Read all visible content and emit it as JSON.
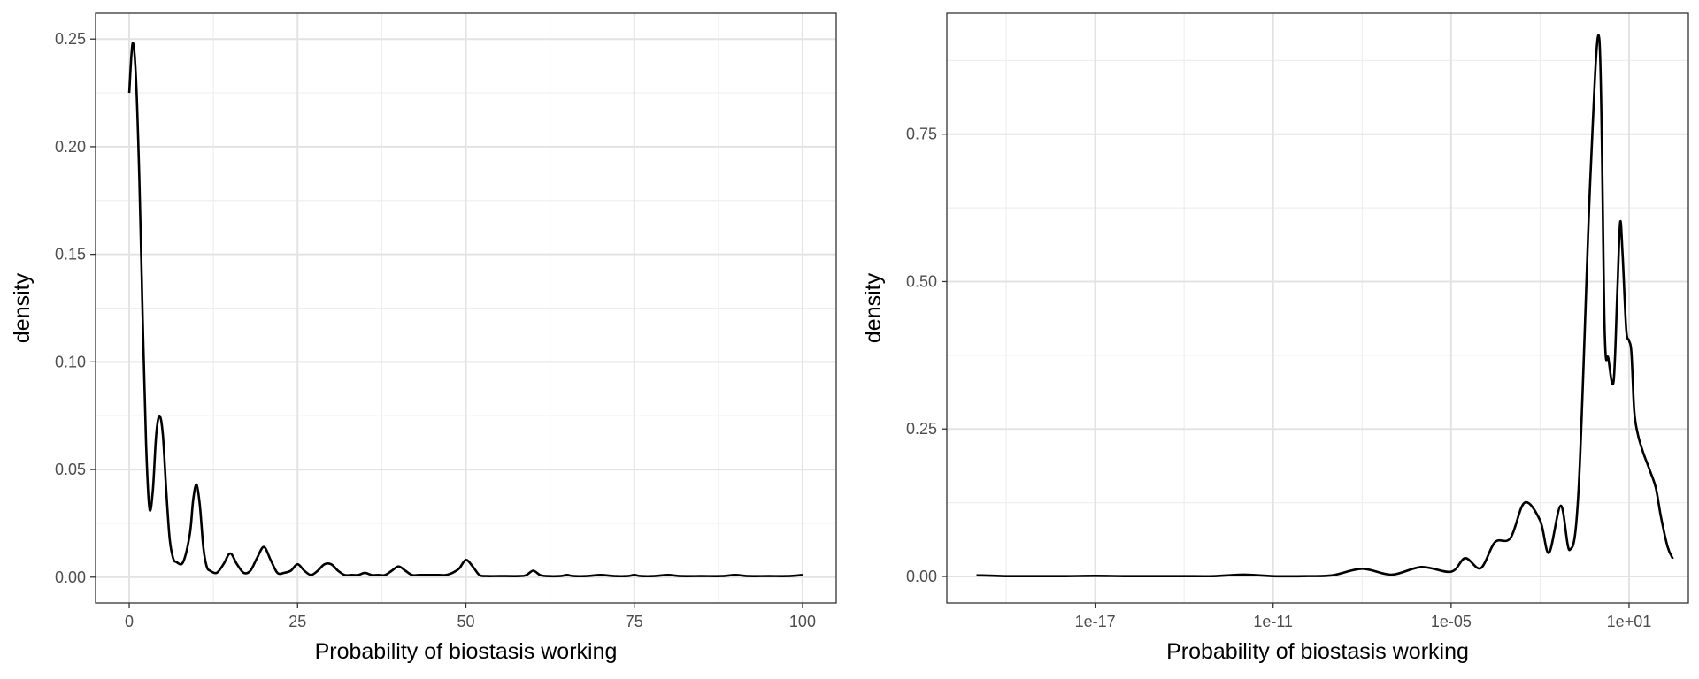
{
  "colors": {
    "line": "#000000",
    "grid_major": "#e3e3e3",
    "grid_minor": "#efefef",
    "border": "#333333",
    "background": "#ffffff"
  },
  "chart_data": [
    {
      "type": "line",
      "xlabel": "Probability of biostasis working",
      "ylabel": "density",
      "x_scale": "linear",
      "xlim": [
        -5,
        105
      ],
      "ylim": [
        -0.012,
        0.262
      ],
      "x_ticks": [
        0,
        25,
        50,
        75,
        100
      ],
      "x_tick_labels": [
        "0",
        "25",
        "50",
        "75",
        "100"
      ],
      "y_ticks": [
        0,
        0.05,
        0.1,
        0.15,
        0.2,
        0.25
      ],
      "y_tick_labels": [
        "0.00",
        "0.05",
        "0.10",
        "0.15",
        "0.20",
        "0.25"
      ],
      "grid": true,
      "series": [
        {
          "x": [
            0,
            0.5,
            1,
            1.5,
            2,
            2.5,
            3,
            3.5,
            4,
            4.5,
            5,
            5.5,
            6,
            6.5,
            7,
            8,
            9,
            9.5,
            10,
            10.5,
            11,
            11.5,
            12,
            13,
            14,
            15,
            16,
            17,
            18,
            19,
            20,
            21,
            22,
            23,
            24,
            25,
            26,
            27,
            28,
            29,
            30,
            31,
            32,
            33,
            34,
            35,
            36,
            37,
            38,
            39,
            40,
            41,
            42,
            43,
            44,
            45,
            46,
            47,
            48,
            49,
            50,
            51,
            52,
            53,
            55,
            58,
            59,
            60,
            61,
            62,
            64,
            65,
            66,
            68,
            70,
            72,
            74,
            75,
            76,
            78,
            80,
            82,
            85,
            88,
            90,
            92,
            95,
            98,
            100
          ],
          "y": [
            0.225,
            0.248,
            0.232,
            0.185,
            0.12,
            0.062,
            0.032,
            0.04,
            0.066,
            0.075,
            0.066,
            0.04,
            0.018,
            0.009,
            0.007,
            0.007,
            0.02,
            0.036,
            0.043,
            0.033,
            0.014,
            0.005,
            0.003,
            0.002,
            0.006,
            0.011,
            0.006,
            0.002,
            0.003,
            0.009,
            0.014,
            0.008,
            0.002,
            0.002,
            0.003,
            0.006,
            0.003,
            0.001,
            0.003,
            0.006,
            0.006,
            0.003,
            0.001,
            0.001,
            0.001,
            0.002,
            0.001,
            0.001,
            0.001,
            0.003,
            0.005,
            0.003,
            0.001,
            0.001,
            0.001,
            0.001,
            0.001,
            0.001,
            0.002,
            0.004,
            0.008,
            0.005,
            0.001,
            0.0005,
            0.0005,
            0.0005,
            0.001,
            0.003,
            0.001,
            0.0005,
            0.0005,
            0.001,
            0.0005,
            0.0005,
            0.001,
            0.0005,
            0.0005,
            0.001,
            0.0005,
            0.0005,
            0.001,
            0.0005,
            0.0005,
            0.0005,
            0.001,
            0.0005,
            0.0005,
            0.0005,
            0.001
          ]
        }
      ]
    },
    {
      "type": "line",
      "xlabel": "Probability of biostasis working",
      "ylabel": "density",
      "x_scale": "log10",
      "xlim": [
        1e-22,
        1000.0
      ],
      "ylim": [
        -0.045,
        0.955
      ],
      "x_ticks": [
        1e-17,
        1e-11,
        1e-05,
        10
      ],
      "x_tick_labels": [
        "1e-17",
        "1e-11",
        "1e-05",
        "1e+01"
      ],
      "y_ticks": [
        0,
        0.25,
        0.5,
        0.75
      ],
      "y_tick_labels": [
        "0.00",
        "0.25",
        "0.50",
        "0.75"
      ],
      "grid": true,
      "series": [
        {
          "x": [
            1e-21,
            1e-20,
            1e-19,
            1e-18,
            1e-17,
            1e-16,
            1e-15,
            1e-14,
            1e-13,
            1e-12,
            1e-11,
            1e-10,
            1e-09,
            1e-08,
            1e-07,
            1e-06,
            1e-05,
            3e-05,
            0.0001,
            0.0003,
            0.001,
            0.003,
            0.01,
            0.02,
            0.05,
            0.1,
            0.2,
            0.5,
            1,
            1.5,
            2,
            3,
            4,
            5,
            6,
            8,
            10,
            12,
            15,
            20,
            30,
            50,
            80,
            120,
            200,
            300
          ],
          "y": [
            0.002,
            0.0005,
            0.0005,
            0.0005,
            0.001,
            0.0005,
            0.0005,
            0.0005,
            0.0005,
            0.003,
            0.0005,
            0.0005,
            0.002,
            0.013,
            0.003,
            0.016,
            0.008,
            0.031,
            0.014,
            0.058,
            0.065,
            0.125,
            0.095,
            0.04,
            0.12,
            0.045,
            0.15,
            0.68,
            0.91,
            0.42,
            0.37,
            0.33,
            0.48,
            0.6,
            0.55,
            0.42,
            0.4,
            0.38,
            0.28,
            0.24,
            0.21,
            0.18,
            0.15,
            0.1,
            0.05,
            0.03
          ]
        }
      ]
    }
  ]
}
